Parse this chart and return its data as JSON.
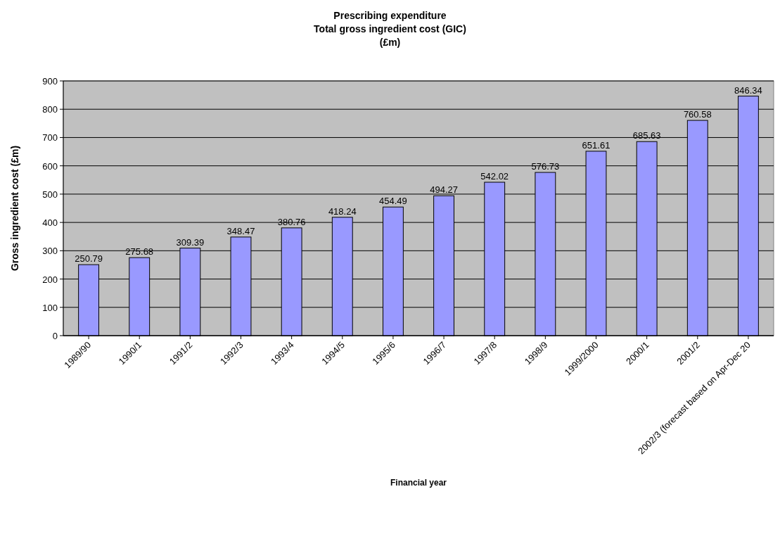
{
  "chart_data": {
    "type": "bar",
    "title": "Prescribing expenditure\nTotal gross ingredient cost (GIC)\n(£m)",
    "xlabel": "Financial year",
    "ylabel": "Gross ingredient cost (£m)",
    "categories": [
      "1989/90",
      "1990/1",
      "1991/2",
      "1992/3",
      "1993/4",
      "1994/5",
      "1995/6",
      "1996/7",
      "1997/8",
      "1998/9",
      "1999/2000",
      "2000/1",
      "2001/2",
      "2002/3 (forecast based on Apr-Dec 20"
    ],
    "values": [
      250.79,
      275.68,
      309.39,
      348.47,
      380.76,
      418.24,
      454.49,
      494.27,
      542.02,
      576.73,
      651.61,
      685.63,
      760.58,
      846.34
    ],
    "color": "#9999ff",
    "ylim": [
      0,
      900
    ],
    "yticks": [
      0,
      100,
      200,
      300,
      400,
      500,
      600,
      700,
      800,
      900
    ],
    "grid": "y",
    "data_labels": true
  }
}
